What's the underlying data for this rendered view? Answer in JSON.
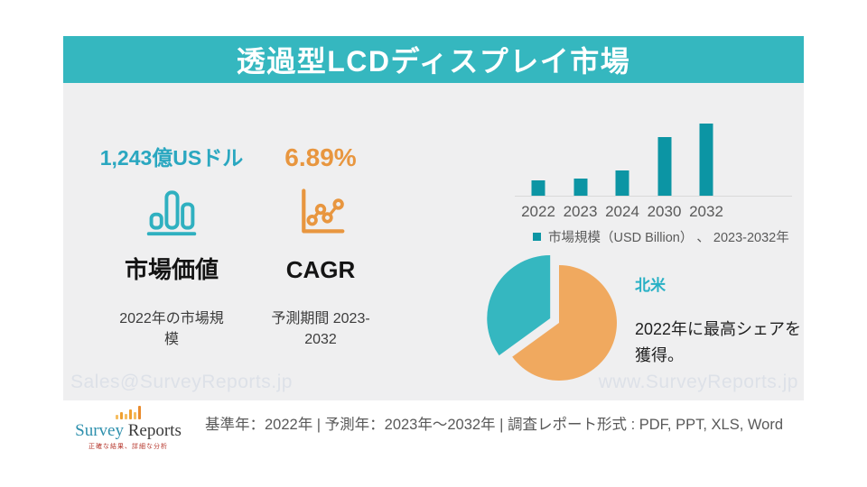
{
  "title": "透過型LCDディスプレイ市場",
  "stats": {
    "market_value": {
      "value": "1,243億USドル",
      "heading": "市場価値",
      "subtext": "2022年の市場規模",
      "icon": "bar-chart-icon",
      "color": "#2aa7c0"
    },
    "cagr": {
      "value": "6.89%",
      "heading": "CAGR",
      "subtext": "予測期間 2023-2032",
      "icon": "line-chart-icon",
      "color": "#e8963f"
    }
  },
  "chart_data": [
    {
      "type": "bar",
      "title": "",
      "categories": [
        "2022",
        "2023",
        "2024",
        "2030",
        "2032"
      ],
      "values": [
        17,
        19,
        28,
        66,
        81
      ],
      "unit": "relative bar height (no y-axis labels shown)",
      "legend": "市場規模（USD Billion） 、 2023-2032年",
      "bar_color": "#0c95a4",
      "legend_position": "bottom",
      "grid": "off"
    },
    {
      "type": "pie",
      "segments": [
        {
          "label": "北米",
          "value_pct": 37,
          "color": "#35b7c0",
          "exploded": true
        },
        {
          "label": "",
          "value_pct": 63,
          "color": "#f0a95f",
          "exploded": false
        }
      ],
      "callout": {
        "region": "北米",
        "text": "2022年に最高シェアを獲得。"
      }
    }
  ],
  "watermarks": {
    "left": "Sales@SurveyReports.jp",
    "right": "www.SurveyReports.jp"
  },
  "footer": {
    "logo": {
      "name_part1": "Survey",
      "name_part2": "Reports",
      "tagline": "正確な結果、詳細な分析",
      "icon": "bar-chart-logo-icon"
    },
    "text": "基準年：2022年 | 予測年：2023年～2032年 | 調査レポート形式 : PDF, PPT, XLS, Word"
  },
  "colors": {
    "banner": "#35b7bf",
    "panel_background": "#efeff0",
    "bar_teal": "#0c95a4",
    "pie_teal": "#35b7c0",
    "pie_orange": "#f0a95f",
    "accent_orange": "#e8963f",
    "accent_teal": "#2aa7c0",
    "muted_text": "#595959",
    "watermark": "#dde1e8"
  }
}
